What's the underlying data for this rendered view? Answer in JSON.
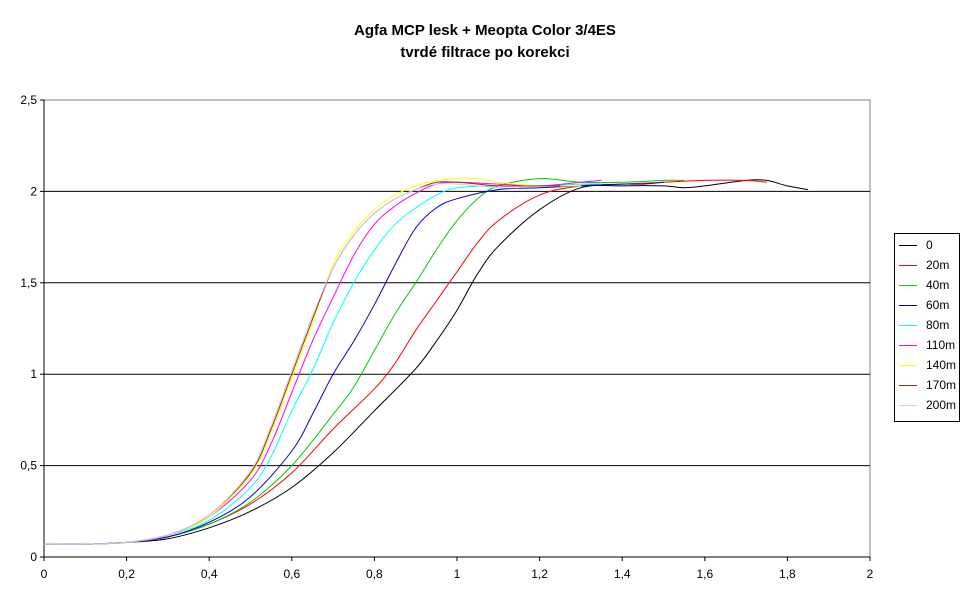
{
  "chart_data": {
    "type": "line",
    "title": "Agfa MCP lesk + Meopta Color 3/4ES",
    "subtitle": "tvrdé filtrace po korekci",
    "xlabel": "",
    "ylabel": "",
    "xlim": [
      0,
      2
    ],
    "ylim": [
      0,
      2.5
    ],
    "x_ticks": [
      "0",
      "0,2",
      "0,4",
      "0,6",
      "0,8",
      "1",
      "1,2",
      "1,4",
      "1,6",
      "1,8",
      "2"
    ],
    "y_ticks": [
      "0",
      "0,5",
      "1",
      "1,5",
      "2",
      "2,5"
    ],
    "grid": "horizontal",
    "legend_position": "right",
    "series": [
      {
        "name": "0",
        "color": "#000000",
        "x": [
          0.0,
          0.1,
          0.2,
          0.3,
          0.4,
          0.5,
          0.6,
          0.7,
          0.8,
          0.9,
          0.95,
          1.0,
          1.05,
          1.1,
          1.2,
          1.3,
          1.4,
          1.5,
          1.55,
          1.6,
          1.7,
          1.75,
          1.8,
          1.85
        ],
        "y": [
          0.07,
          0.07,
          0.08,
          0.1,
          0.16,
          0.25,
          0.38,
          0.57,
          0.8,
          1.03,
          1.18,
          1.35,
          1.55,
          1.7,
          1.9,
          2.02,
          2.03,
          2.03,
          2.02,
          2.03,
          2.06,
          2.06,
          2.03,
          2.01
        ]
      },
      {
        "name": "20m",
        "color": "#ff0000",
        "x": [
          0.0,
          0.1,
          0.2,
          0.3,
          0.4,
          0.5,
          0.6,
          0.7,
          0.8,
          0.85,
          0.9,
          0.95,
          1.0,
          1.05,
          1.1,
          1.2,
          1.3,
          1.4,
          1.5,
          1.6,
          1.7,
          1.75
        ],
        "y": [
          0.07,
          0.07,
          0.08,
          0.11,
          0.18,
          0.29,
          0.46,
          0.7,
          0.92,
          1.06,
          1.24,
          1.4,
          1.56,
          1.72,
          1.84,
          1.98,
          2.03,
          2.04,
          2.05,
          2.06,
          2.06,
          2.05
        ]
      },
      {
        "name": "40m",
        "color": "#00cc00",
        "x": [
          0.0,
          0.1,
          0.2,
          0.3,
          0.4,
          0.5,
          0.6,
          0.7,
          0.75,
          0.8,
          0.85,
          0.9,
          0.95,
          1.0,
          1.05,
          1.1,
          1.2,
          1.3,
          1.4,
          1.5,
          1.55
        ],
        "y": [
          0.07,
          0.07,
          0.08,
          0.11,
          0.18,
          0.3,
          0.5,
          0.78,
          0.93,
          1.13,
          1.33,
          1.5,
          1.68,
          1.84,
          1.96,
          2.03,
          2.07,
          2.05,
          2.05,
          2.06,
          2.06
        ]
      },
      {
        "name": "60m",
        "color": "#0000cc",
        "x": [
          0.0,
          0.1,
          0.2,
          0.3,
          0.4,
          0.5,
          0.6,
          0.65,
          0.7,
          0.75,
          0.8,
          0.85,
          0.9,
          0.95,
          1.0,
          1.1,
          1.2,
          1.3,
          1.4,
          1.45,
          1.5
        ],
        "y": [
          0.07,
          0.07,
          0.08,
          0.11,
          0.19,
          0.33,
          0.58,
          0.78,
          1.0,
          1.18,
          1.38,
          1.6,
          1.8,
          1.91,
          1.96,
          2.01,
          2.02,
          2.03,
          2.04,
          2.04,
          2.05
        ]
      },
      {
        "name": "80m",
        "color": "#00ffff",
        "x": [
          0.0,
          0.1,
          0.2,
          0.3,
          0.4,
          0.5,
          0.55,
          0.6,
          0.65,
          0.7,
          0.75,
          0.8,
          0.85,
          0.9,
          0.95,
          1.0,
          1.1,
          1.2,
          1.3,
          1.35
        ],
        "y": [
          0.07,
          0.07,
          0.08,
          0.12,
          0.2,
          0.38,
          0.55,
          0.8,
          1.02,
          1.28,
          1.5,
          1.68,
          1.82,
          1.91,
          1.98,
          2.02,
          2.03,
          2.03,
          2.04,
          2.04
        ]
      },
      {
        "name": "110m",
        "color": "#ff00ff",
        "x": [
          0.0,
          0.1,
          0.2,
          0.3,
          0.4,
          0.5,
          0.55,
          0.6,
          0.65,
          0.7,
          0.75,
          0.8,
          0.85,
          0.9,
          0.95,
          1.0,
          1.1,
          1.2,
          1.3,
          1.35
        ],
        "y": [
          0.07,
          0.07,
          0.08,
          0.12,
          0.22,
          0.42,
          0.62,
          0.9,
          1.18,
          1.42,
          1.65,
          1.82,
          1.92,
          1.99,
          2.04,
          2.05,
          2.04,
          2.03,
          2.05,
          2.06
        ]
      },
      {
        "name": "140m",
        "color": "#ffff00",
        "x": [
          0.0,
          0.1,
          0.2,
          0.3,
          0.4,
          0.5,
          0.55,
          0.6,
          0.65,
          0.7,
          0.75,
          0.8,
          0.85,
          0.9,
          0.95,
          1.0,
          1.05,
          1.1,
          1.2,
          1.3
        ],
        "y": [
          0.07,
          0.07,
          0.08,
          0.12,
          0.22,
          0.45,
          0.68,
          0.98,
          1.28,
          1.6,
          1.78,
          1.9,
          1.98,
          2.03,
          2.06,
          2.07,
          2.07,
          2.05,
          2.03,
          2.03
        ]
      },
      {
        "name": "170m",
        "color": "#993300",
        "x": [
          0.0,
          0.1,
          0.2,
          0.3,
          0.4,
          0.5,
          0.55,
          0.6,
          0.65,
          0.7,
          0.75,
          0.8,
          0.85,
          0.9,
          0.95,
          1.0,
          1.05,
          1.1,
          1.2,
          1.25
        ],
        "y": [
          0.07,
          0.07,
          0.08,
          0.12,
          0.23,
          0.46,
          0.7,
          1.0,
          1.3,
          1.58,
          1.76,
          1.88,
          1.96,
          2.01,
          2.05,
          2.05,
          2.04,
          2.03,
          2.03,
          2.03
        ]
      },
      {
        "name": "200m",
        "color": "#ccccff",
        "x": [
          0.0,
          0.1,
          0.2,
          0.3,
          0.4,
          0.5,
          0.55,
          0.6,
          0.65,
          0.7,
          0.75,
          0.8,
          0.85,
          0.9,
          0.95,
          1.0,
          1.05,
          1.1,
          1.15
        ],
        "y": [
          0.07,
          0.07,
          0.08,
          0.12,
          0.23,
          0.47,
          0.72,
          1.02,
          1.32,
          1.58,
          1.76,
          1.88,
          1.96,
          2.01,
          2.04,
          2.04,
          2.03,
          2.02,
          2.02
        ]
      }
    ]
  }
}
